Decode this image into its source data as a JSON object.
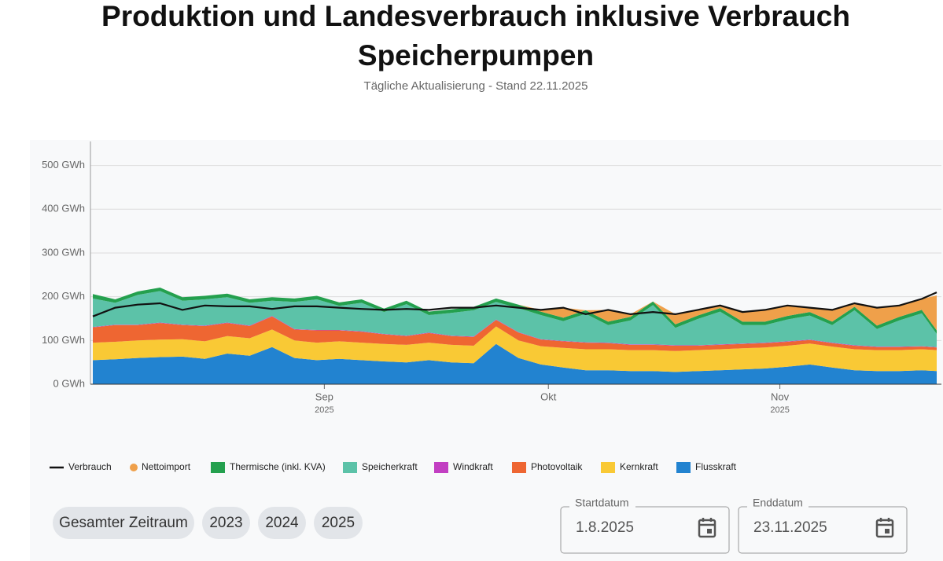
{
  "header": {
    "title_lines": [
      "Produktion und Landesverbrauch inklusive Verbrauch",
      "Speicherpumpen"
    ],
    "subtitle": "Tägliche Aktualisierung - Stand 22.11.2025"
  },
  "chart_data": {
    "type": "area",
    "stacked": true,
    "x": [
      "2025-08-01",
      "2025-08-04",
      "2025-08-07",
      "2025-08-10",
      "2025-08-13",
      "2025-08-16",
      "2025-08-19",
      "2025-08-22",
      "2025-08-25",
      "2025-08-28",
      "2025-08-31",
      "2025-09-03",
      "2025-09-06",
      "2025-09-09",
      "2025-09-12",
      "2025-09-15",
      "2025-09-18",
      "2025-09-21",
      "2025-09-24",
      "2025-09-27",
      "2025-09-30",
      "2025-10-03",
      "2025-10-06",
      "2025-10-09",
      "2025-10-12",
      "2025-10-15",
      "2025-10-18",
      "2025-10-21",
      "2025-10-24",
      "2025-10-27",
      "2025-10-30",
      "2025-11-02",
      "2025-11-05",
      "2025-11-08",
      "2025-11-11",
      "2025-11-14",
      "2025-11-17",
      "2025-11-20",
      "2025-11-22"
    ],
    "xlim": [
      "2025-08-01",
      "2025-11-22"
    ],
    "xticks": [
      {
        "value": "2025-09-01",
        "label": "Sep",
        "year": "2025"
      },
      {
        "value": "2025-10-01",
        "label": "Okt"
      },
      {
        "value": "2025-11-01",
        "label": "Nov",
        "year": "2025"
      }
    ],
    "ylim": [
      0,
      555
    ],
    "yticks": [
      {
        "value": 0,
        "label": "0 GWh"
      },
      {
        "value": 100,
        "label": "100 GWh"
      },
      {
        "value": 200,
        "label": "200 GWh"
      },
      {
        "value": 300,
        "label": "300 GWh"
      },
      {
        "value": 400,
        "label": "400 GWh"
      },
      {
        "value": 500,
        "label": "500 GWh"
      }
    ],
    "grid": true,
    "legend": "bottom",
    "series": [
      {
        "name": "Verbrauch",
        "type": "line",
        "color": "#111111",
        "values": [
          155,
          175,
          182,
          185,
          170,
          180,
          178,
          178,
          172,
          178,
          178,
          175,
          172,
          170,
          172,
          170,
          175,
          175,
          180,
          175,
          170,
          175,
          160,
          170,
          160,
          165,
          160,
          170,
          180,
          165,
          170,
          180,
          175,
          170,
          185,
          175,
          180,
          195,
          210
        ]
      },
      {
        "name": "Nettoimport",
        "type": "area",
        "color": "#efa04a",
        "values": [
          0,
          0,
          0,
          0,
          0,
          0,
          0,
          0,
          0,
          0,
          0,
          0,
          0,
          0,
          0,
          0,
          0,
          0,
          0,
          0,
          4,
          23,
          0,
          27,
          6,
          0,
          23,
          13,
          6,
          22,
          27,
          24,
          10,
          27,
          8,
          41,
          26,
          25,
          80
        ]
      },
      {
        "name": "Thermische (inkl. KVA)",
        "type": "area",
        "color": "#24a04e",
        "values": [
          10,
          8,
          8,
          8,
          8,
          8,
          8,
          8,
          8,
          8,
          8,
          8,
          8,
          8,
          8,
          8,
          8,
          8,
          8,
          8,
          8,
          8,
          8,
          8,
          8,
          8,
          8,
          8,
          8,
          8,
          8,
          8,
          8,
          8,
          8,
          8,
          8,
          8,
          8
        ]
      },
      {
        "name": "Speicherkraft",
        "type": "area",
        "color": "#5cc2a8",
        "values": [
          65,
          50,
          68,
          72,
          55,
          60,
          58,
          52,
          35,
          62,
          70,
          55,
          65,
          50,
          72,
          40,
          52,
          60,
          40,
          55,
          55,
          45,
          65,
          40,
          55,
          90,
          40,
          60,
          75,
          42,
          40,
          50,
          55,
          40,
          80,
          40,
          60,
          75,
          30
        ]
      },
      {
        "name": "Windkraft",
        "type": "area",
        "color": "#c23fc2",
        "values": [
          1,
          1,
          1,
          1,
          1,
          1,
          1,
          1,
          1,
          1,
          1,
          1,
          1,
          1,
          1,
          1,
          1,
          1,
          1,
          1,
          1,
          1,
          1,
          1,
          1,
          1,
          1,
          1,
          1,
          1,
          1,
          1,
          1,
          1,
          1,
          1,
          1,
          1,
          1
        ]
      },
      {
        "name": "Photovoltaik",
        "type": "area",
        "color": "#ee6632",
        "values": [
          35,
          38,
          35,
          38,
          32,
          35,
          30,
          28,
          30,
          25,
          28,
          25,
          25,
          22,
          20,
          22,
          20,
          20,
          15,
          18,
          15,
          15,
          15,
          14,
          12,
          12,
          12,
          10,
          10,
          10,
          10,
          9,
          8,
          8,
          8,
          7,
          7,
          6,
          6
        ]
      },
      {
        "name": "Kernkraft",
        "type": "area",
        "color": "#f9c935",
        "values": [
          40,
          40,
          40,
          40,
          40,
          40,
          40,
          40,
          40,
          40,
          40,
          40,
          40,
          40,
          40,
          40,
          40,
          40,
          40,
          40,
          42,
          45,
          48,
          48,
          48,
          48,
          48,
          48,
          48,
          48,
          48,
          48,
          48,
          48,
          48,
          48,
          48,
          48,
          48
        ]
      },
      {
        "name": "Flusskraft",
        "type": "area",
        "color": "#2283d0",
        "values": [
          55,
          57,
          60,
          62,
          63,
          58,
          70,
          65,
          85,
          60,
          55,
          58,
          55,
          52,
          50,
          55,
          50,
          48,
          92,
          60,
          45,
          38,
          32,
          32,
          30,
          30,
          28,
          30,
          32,
          34,
          36,
          40,
          45,
          38,
          32,
          30,
          30,
          32,
          30
        ]
      }
    ]
  },
  "controls": {
    "buttons": [
      "Gesamter Zeitraum",
      "2023",
      "2024",
      "2025"
    ],
    "start": {
      "label": "Startdatum",
      "value": "1.8.2025"
    },
    "end": {
      "label": "Enddatum",
      "value": "23.11.2025"
    }
  }
}
